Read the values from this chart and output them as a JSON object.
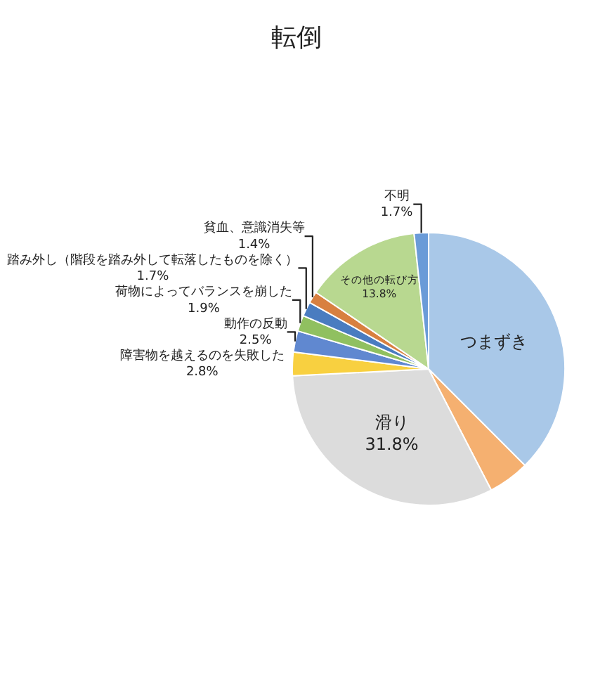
{
  "chart_data": {
    "type": "pie",
    "title": "転倒",
    "categories": [
      "つまずき",
      null,
      "滑り",
      "障害物を越えるのを失敗した",
      "動作の反動",
      "荷物によってバランスを崩した",
      "踏み外し（階段を踏み外して転落したものを除く）",
      "貧血、意識消失等",
      "その他の転び方",
      "不明"
    ],
    "values": [
      37.5,
      4.9,
      31.8,
      2.8,
      2.5,
      1.9,
      1.7,
      1.4,
      13.8,
      1.7
    ],
    "value_labels": [
      null,
      null,
      "31.8%",
      "2.8%",
      "2.5%",
      "1.9%",
      "1.7%",
      "1.4%",
      "13.8%",
      "1.7%"
    ],
    "colors": [
      "#a9c8e8",
      "#f5b070",
      "#dcdcdc",
      "#f8d040",
      "#6088d0",
      "#90c060",
      "#4a7cc0",
      "#d88040",
      "#b8d890",
      "#6a9bd8"
    ],
    "legend": false
  }
}
